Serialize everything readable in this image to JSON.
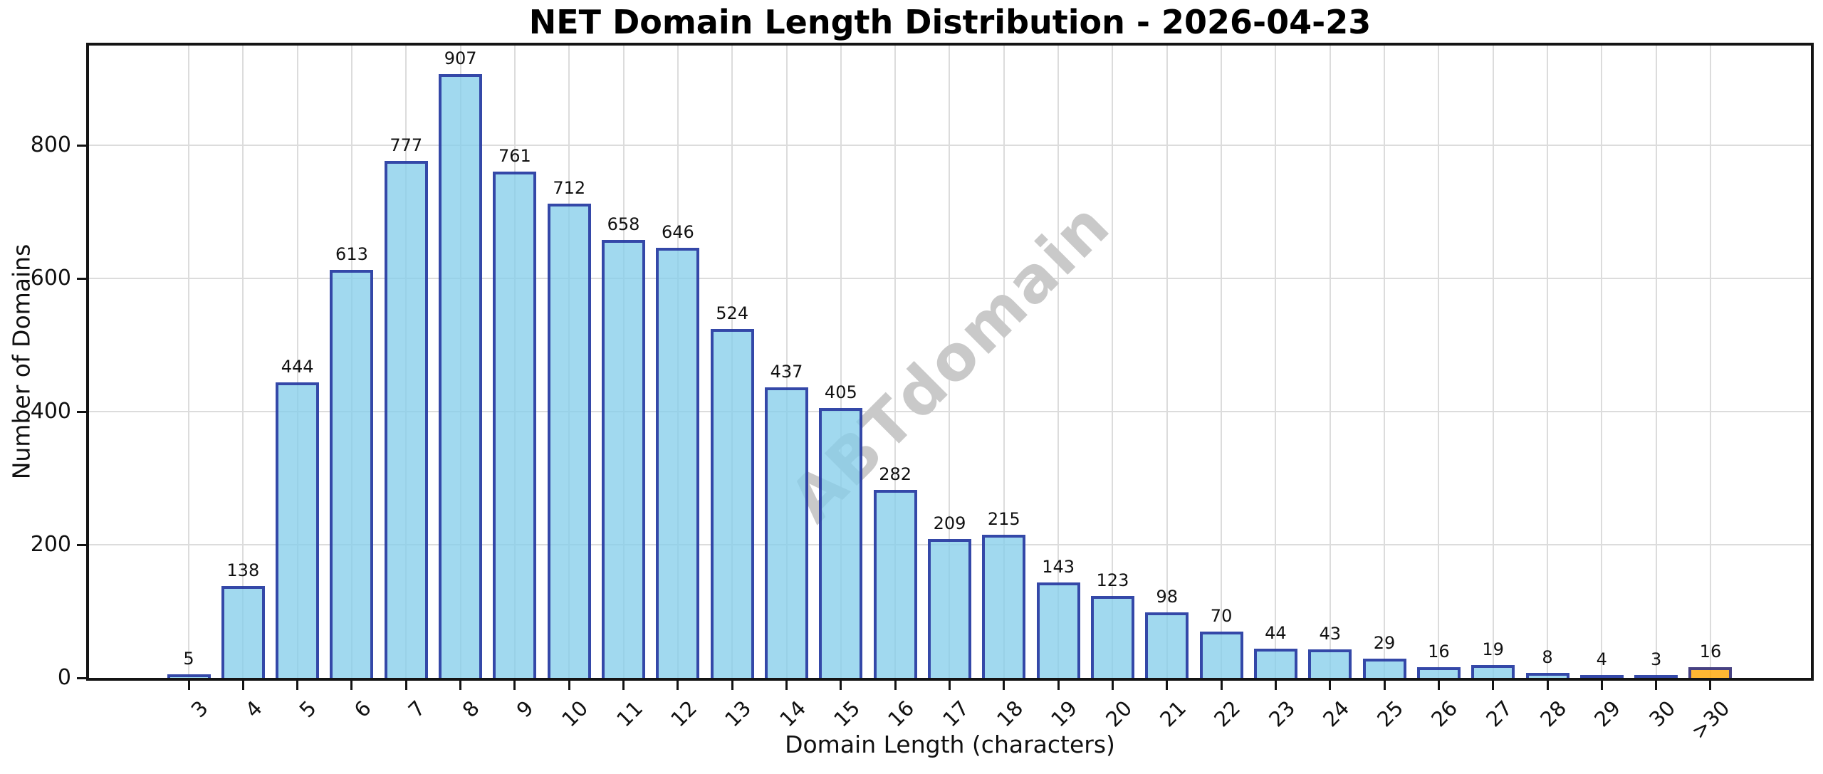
{
  "chart_data": {
    "type": "bar",
    "title": "NET Domain Length Distribution - 2026-04-23",
    "xlabel": "Domain Length (characters)",
    "ylabel": "Number of Domains",
    "categories": [
      "3",
      "4",
      "5",
      "6",
      "7",
      "8",
      "9",
      "10",
      "11",
      "12",
      "13",
      "14",
      "15",
      "16",
      "17",
      "18",
      "19",
      "20",
      "21",
      "22",
      "23",
      "24",
      "25",
      "26",
      "27",
      "28",
      "29",
      "30",
      ">30"
    ],
    "values": [
      5,
      138,
      444,
      613,
      777,
      907,
      761,
      712,
      658,
      646,
      524,
      437,
      405,
      282,
      209,
      215,
      143,
      123,
      98,
      70,
      44,
      43,
      29,
      16,
      19,
      8,
      4,
      3,
      16
    ],
    "bar_value_labels_shown": true,
    "yticks": [
      0,
      200,
      400,
      600,
      800
    ],
    "ylim": [
      0,
      950
    ],
    "grid": true,
    "legend_position": "none",
    "watermark": "ABTdomain",
    "highlight_category": ">30",
    "colors": {
      "bar_fill": "rgba(135,206,235,0.78)",
      "bar_edge": "rgba(25,35,150,0.8)",
      "highlight_fill": "rgba(255,165,0,0.8)",
      "highlight_edge": "rgba(25,35,150,0.8)",
      "grid": "#dcdcdc",
      "watermark_color": "#c9c9c9",
      "spine": "#141414",
      "text": "#111111"
    }
  }
}
